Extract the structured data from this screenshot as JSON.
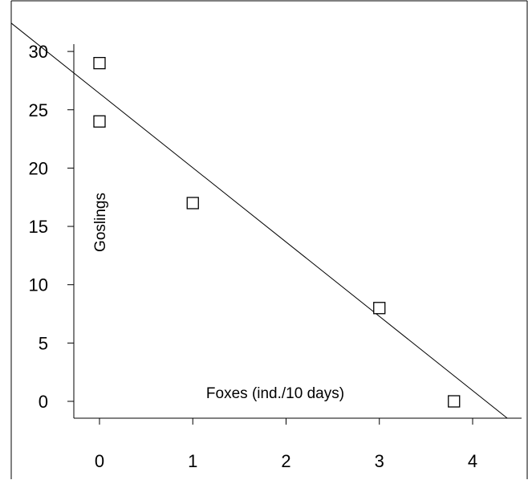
{
  "chart_data": {
    "type": "scatter",
    "title": "",
    "xlabel": "Foxes (ind./10 days)",
    "ylabel": "Goslings",
    "xlim": [
      -0.3,
      4.5
    ],
    "ylim": [
      -1.5,
      31.5
    ],
    "x_ticks": [
      "0",
      "1",
      "2",
      "3",
      "4"
    ],
    "y_ticks": [
      "0",
      "5",
      "10",
      "15",
      "20",
      "25",
      "30"
    ],
    "grid": false,
    "legend": "none",
    "marker": "open-square",
    "series": [
      {
        "points": [
          {
            "x": 0,
            "y": 29
          },
          {
            "x": 0,
            "y": 24
          },
          {
            "x": 1,
            "y": 17
          },
          {
            "x": 3,
            "y": 8
          },
          {
            "x": 3.8,
            "y": 0
          }
        ]
      }
    ],
    "trendline": {
      "type": "linear",
      "intercept": 26.4,
      "slope": -6.37
    },
    "colors": {
      "line": "#000000",
      "marker": "#000000",
      "background": "#ffffff"
    }
  }
}
